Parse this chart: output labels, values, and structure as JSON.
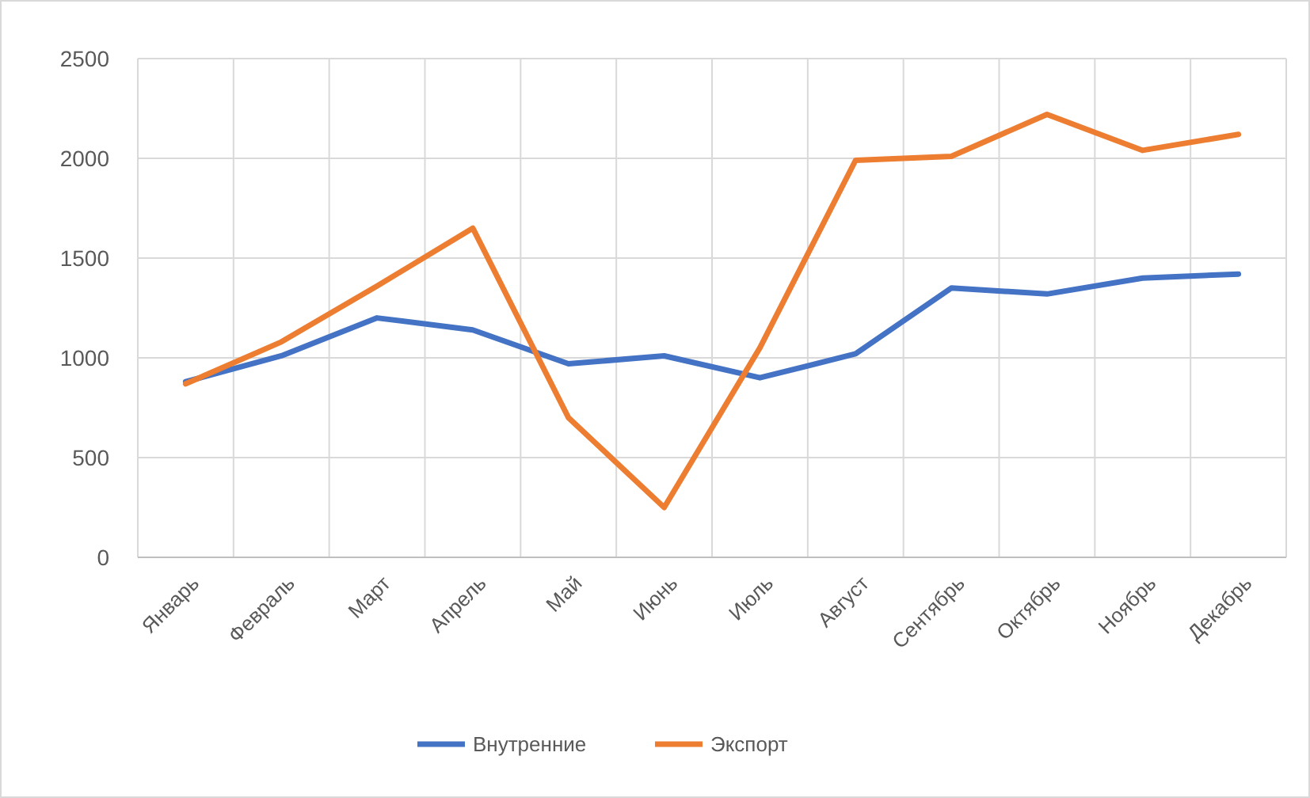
{
  "chart_data": {
    "type": "line",
    "categories": [
      "Январь",
      "Февраль",
      "Март",
      "Апрель",
      "Май",
      "Июнь",
      "Июль",
      "Август",
      "Сентябрь",
      "Октябрь",
      "Ноябрь",
      "Декабрь"
    ],
    "series": [
      {
        "name": "Внутренние",
        "color": "#4472c4",
        "values": [
          880,
          1010,
          1200,
          1140,
          970,
          1010,
          900,
          1020,
          1350,
          1320,
          1400,
          1420
        ]
      },
      {
        "name": "Экспорт",
        "color": "#ed7d31",
        "values": [
          870,
          1080,
          1360,
          1650,
          700,
          250,
          1050,
          1990,
          2010,
          2220,
          2040,
          2120
        ]
      }
    ],
    "ylim": [
      0,
      2500
    ],
    "yticks": [
      0,
      500,
      1000,
      1500,
      2000,
      2500
    ],
    "grid": true,
    "legend": "bottom",
    "marker": "none",
    "line_style": "solid"
  }
}
